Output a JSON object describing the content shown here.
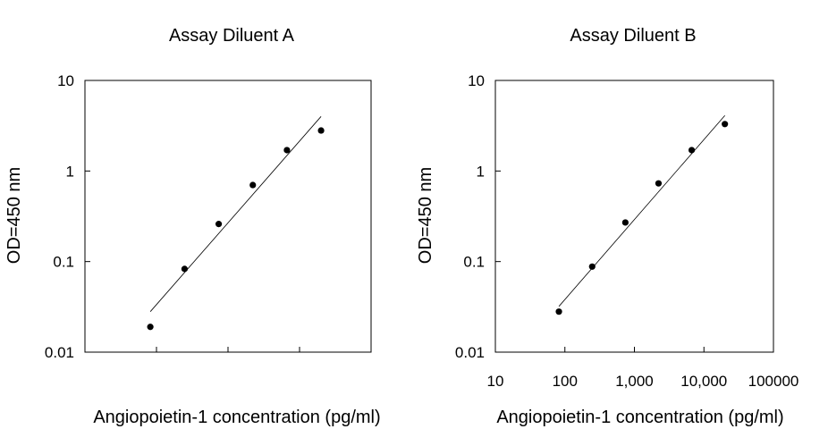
{
  "chart_data": [
    {
      "type": "scatter",
      "title": "Assay Diluent A",
      "xlabel": "Angiopoietin-1 concentration (pg/ml)",
      "ylabel": "OD=450 nm",
      "x_scale": "log",
      "y_scale": "log",
      "xlim": [
        10,
        100000
      ],
      "ylim": [
        0.01,
        10
      ],
      "x_ticks": [
        10,
        100,
        1000,
        10000,
        100000
      ],
      "x_tick_labels": [
        "",
        "",
        "",
        "",
        ""
      ],
      "y_ticks": [
        0.01,
        0.1,
        1,
        10
      ],
      "y_tick_labels": [
        "0.01",
        "0.1",
        "1",
        "10"
      ],
      "grid": false,
      "legend": "none",
      "series": [
        {
          "x": [
            82,
            247,
            741,
            2222,
            6667,
            20000
          ],
          "y": [
            0.019,
            0.083,
            0.26,
            0.7,
            1.7,
            2.8
          ]
        }
      ],
      "trendline": {
        "x": [
          82,
          20000
        ],
        "y": [
          0.028,
          4.0
        ]
      }
    },
    {
      "type": "scatter",
      "title": "Assay Diluent B",
      "xlabel": "Angiopoietin-1 concentration (pg/ml)",
      "ylabel": "OD=450 nm",
      "x_scale": "log",
      "y_scale": "log",
      "xlim": [
        10,
        100000
      ],
      "ylim": [
        0.01,
        10
      ],
      "x_ticks": [
        10,
        100,
        1000,
        10000,
        100000
      ],
      "x_tick_labels": [
        "10",
        "100",
        "1,000",
        "10,000",
        "100000"
      ],
      "y_ticks": [
        0.01,
        0.1,
        1,
        10
      ],
      "y_tick_labels": [
        "0.01",
        "0.1",
        "1",
        "10"
      ],
      "grid": false,
      "legend": "none",
      "series": [
        {
          "x": [
            82,
            247,
            741,
            2222,
            6667,
            20000
          ],
          "y": [
            0.028,
            0.088,
            0.27,
            0.73,
            1.7,
            3.3
          ]
        }
      ],
      "trendline": {
        "x": [
          82,
          20000
        ],
        "y": [
          0.032,
          4.1
        ]
      }
    }
  ]
}
